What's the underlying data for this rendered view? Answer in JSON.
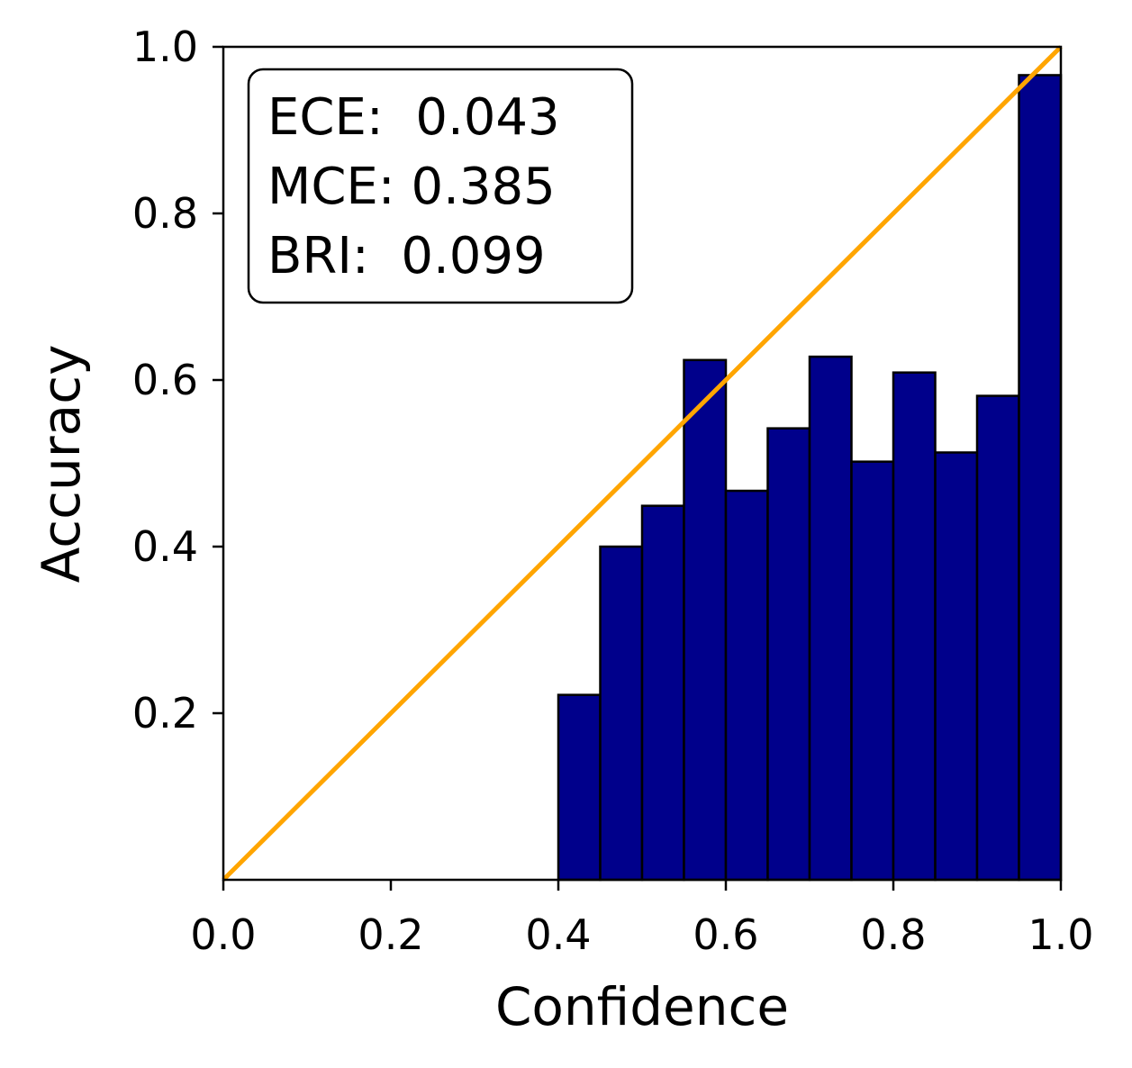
{
  "chart_data": {
    "type": "bar",
    "xlabel": "Confidence",
    "ylabel": "Accuracy",
    "xlim": [
      0.0,
      1.0
    ],
    "ylim": [
      0.0,
      1.0
    ],
    "x_ticks": [
      "0.0",
      "0.2",
      "0.4",
      "0.6",
      "0.8",
      "1.0"
    ],
    "y_ticks": [
      "0.2",
      "0.4",
      "0.6",
      "0.8",
      "1.0"
    ],
    "bin_width": 0.05,
    "bins": [
      {
        "x": 0.4,
        "value": 0.222
      },
      {
        "x": 0.45,
        "value": 0.4
      },
      {
        "x": 0.5,
        "value": 0.449
      },
      {
        "x": 0.55,
        "value": 0.624
      },
      {
        "x": 0.6,
        "value": 0.467
      },
      {
        "x": 0.65,
        "value": 0.542
      },
      {
        "x": 0.7,
        "value": 0.628
      },
      {
        "x": 0.75,
        "value": 0.502
      },
      {
        "x": 0.8,
        "value": 0.609
      },
      {
        "x": 0.85,
        "value": 0.513
      },
      {
        "x": 0.9,
        "value": 0.581
      },
      {
        "x": 0.95,
        "value": 0.966
      }
    ],
    "reference_line": {
      "x": [
        0.0,
        1.0
      ],
      "y": [
        0.0,
        1.0
      ]
    },
    "bar_color": "#00008b",
    "bar_edge_color": "#000000",
    "line_color": "#ffa500",
    "grid": false,
    "legend": "none",
    "metrics_box": {
      "position": "top-left",
      "lines": [
        "ECE:  0.043",
        "MCE: 0.385",
        "BRI:  0.099"
      ]
    }
  }
}
